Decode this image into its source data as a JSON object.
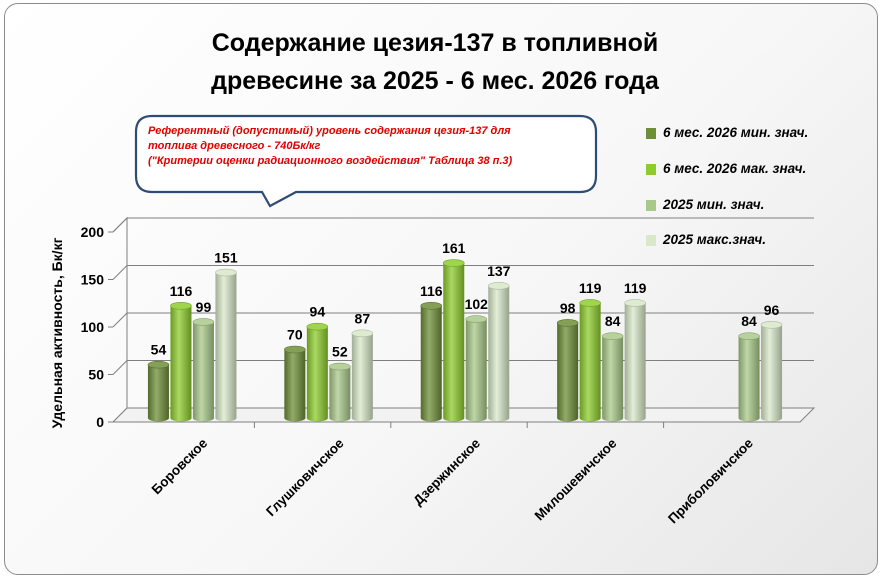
{
  "chart_data": {
    "type": "bar",
    "title": "Содержание цезия-137 в топливной древесине за 2025 - 6 мес. 2026 года",
    "title_lines": [
      "Содержание цезия-137 в топливной",
      "древесине за 2025 - 6 мес. 2026 года"
    ],
    "ylabel": "Удельная активность, Бк/кг",
    "xlabel": "",
    "ylim": [
      0,
      200
    ],
    "yticks": [
      "0",
      "50",
      "100",
      "150",
      "200"
    ],
    "grid": true,
    "legend_position": "right",
    "categories": [
      "Боровское",
      "Глушковичское",
      "Дзержинское",
      "Милошевичское",
      "Приболовичское"
    ],
    "series": [
      {
        "name": "6 мес. 2026 мин. знач.",
        "color": "#6e8f38",
        "values": [
          54,
          70,
          116,
          98,
          null
        ]
      },
      {
        "name": "6 мес. 2026 мак. знач.",
        "color": "#8ecc2e",
        "values": [
          116,
          94,
          161,
          119,
          null
        ]
      },
      {
        "name": "2025 мин. знач.",
        "color": "#a9c98a",
        "values": [
          99,
          52,
          102,
          84,
          84
        ]
      },
      {
        "name": "2025  макс.знач.",
        "color": "#d8e8c8",
        "values": [
          151,
          87,
          137,
          119,
          96
        ]
      }
    ],
    "data_labels": [
      [
        "54",
        "116",
        "99",
        "151"
      ],
      [
        "70",
        "94",
        "52",
        "87"
      ],
      [
        "116",
        "161",
        "102",
        "137"
      ],
      [
        "98",
        "119",
        "84",
        "119"
      ],
      [
        "",
        "",
        "84",
        "96"
      ]
    ],
    "annotation": {
      "lines": [
        "Референтный (допустимый) уровень содержания цезия-137 для",
        "топлива древесного - 740Бк/кг",
        "(\"Критерии оценки радиационного воздействия\" Таблица 38 п.3)"
      ],
      "color": "#e00000",
      "border_color": "#2e4d74"
    }
  }
}
